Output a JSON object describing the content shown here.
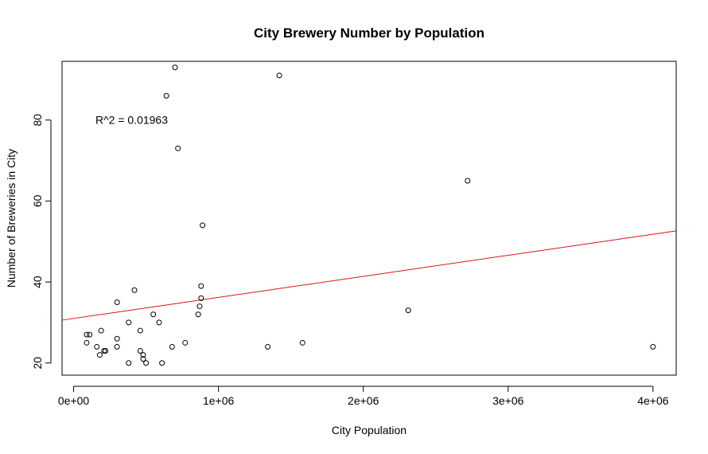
{
  "chart_data": {
    "type": "scatter",
    "title": "City Brewery Number by Population",
    "xlabel": "City Population",
    "ylabel": "Number of Breweries in City",
    "xlim": [
      -80000,
      4160000
    ],
    "ylim": [
      17,
      94.5
    ],
    "x_ticks": [
      0,
      1000000,
      2000000,
      3000000,
      4000000
    ],
    "x_tick_labels": [
      "0e+00",
      "1e+06",
      "2e+06",
      "3e+06",
      "4e+06"
    ],
    "y_ticks": [
      20,
      40,
      60,
      80
    ],
    "y_tick_labels": [
      "20",
      "40",
      "60",
      "80"
    ],
    "annotation": {
      "text": "R^2 = 0.01963",
      "x": 200000,
      "y": 80
    },
    "fit_line": {
      "intercept": 31.0,
      "slope": 5.2e-06,
      "color": "#e0101a"
    },
    "points": [
      {
        "x": 700000,
        "y": 93
      },
      {
        "x": 1420000,
        "y": 91
      },
      {
        "x": 640000,
        "y": 86
      },
      {
        "x": 720000,
        "y": 73
      },
      {
        "x": 2720000,
        "y": 65
      },
      {
        "x": 890000,
        "y": 54
      },
      {
        "x": 420000,
        "y": 38
      },
      {
        "x": 880000,
        "y": 39
      },
      {
        "x": 300000,
        "y": 35
      },
      {
        "x": 880000,
        "y": 36
      },
      {
        "x": 870000,
        "y": 34
      },
      {
        "x": 2310000,
        "y": 33
      },
      {
        "x": 860000,
        "y": 32
      },
      {
        "x": 550000,
        "y": 32
      },
      {
        "x": 380000,
        "y": 30
      },
      {
        "x": 590000,
        "y": 30
      },
      {
        "x": 190000,
        "y": 28
      },
      {
        "x": 460000,
        "y": 28
      },
      {
        "x": 90000,
        "y": 27
      },
      {
        "x": 110000,
        "y": 27
      },
      {
        "x": 300000,
        "y": 26
      },
      {
        "x": 90000,
        "y": 25
      },
      {
        "x": 770000,
        "y": 25
      },
      {
        "x": 1580000,
        "y": 25
      },
      {
        "x": 160000,
        "y": 24
      },
      {
        "x": 300000,
        "y": 24
      },
      {
        "x": 680000,
        "y": 24
      },
      {
        "x": 1340000,
        "y": 24
      },
      {
        "x": 4000000,
        "y": 24
      },
      {
        "x": 210000,
        "y": 23
      },
      {
        "x": 220000,
        "y": 23
      },
      {
        "x": 460000,
        "y": 23
      },
      {
        "x": 180000,
        "y": 22
      },
      {
        "x": 480000,
        "y": 22
      },
      {
        "x": 480000,
        "y": 21
      },
      {
        "x": 380000,
        "y": 20
      },
      {
        "x": 500000,
        "y": 20
      },
      {
        "x": 610000,
        "y": 20
      }
    ]
  }
}
